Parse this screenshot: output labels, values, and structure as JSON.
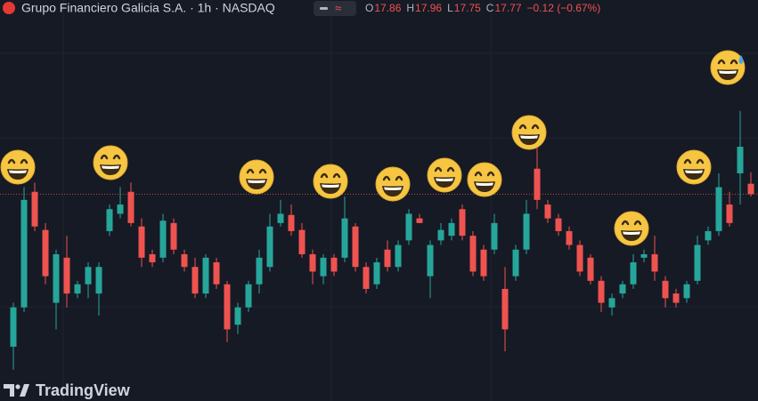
{
  "chart_data": {
    "type": "candlestick",
    "title": "Grupo Financiero Galicia S.A. · 1h · NASDAQ",
    "ohlc_labels": [
      "O",
      "H",
      "L",
      "C"
    ],
    "change": "−0.12 (−0.67%)",
    "brand": "TradingView",
    "up_color": "#26a69a",
    "down_color": "#ef5350",
    "ylim": [
      15.98,
      19.45
    ],
    "open": [
      16.45,
      16.79,
      17.79,
      17.46,
      16.83,
      17.22,
      16.91,
      16.99,
      16.91,
      17.45,
      17.6,
      17.79,
      17.49,
      17.25,
      17.22,
      17.52,
      17.25,
      17.14,
      16.91,
      17.18,
      16.99,
      16.64,
      16.79,
      16.99,
      17.14,
      17.52,
      17.59,
      17.46,
      17.25,
      17.06,
      17.22,
      17.22,
      17.49,
      17.14,
      16.99,
      17.29,
      17.14,
      17.37,
      17.56,
      17.06,
      17.37,
      17.41,
      17.64,
      17.41,
      17.29,
      17.29,
      16.95,
      17.06,
      17.29,
      17.99,
      17.68,
      17.56,
      17.45,
      17.33,
      17.22,
      17.02,
      16.79,
      16.91,
      16.99,
      17.22,
      17.25,
      17.02,
      16.91,
      16.87,
      17.02,
      17.37,
      17.45,
      17.68,
      17.95,
      17.86
    ],
    "high": [
      16.83,
      17.83,
      17.87,
      17.52,
      17.29,
      17.41,
      17.02,
      17.18,
      17.18,
      17.68,
      17.83,
      17.87,
      17.56,
      17.29,
      17.6,
      17.56,
      17.29,
      17.22,
      17.25,
      17.22,
      17.02,
      16.83,
      17.02,
      17.29,
      17.6,
      17.72,
      17.68,
      17.52,
      17.29,
      17.25,
      17.25,
      17.75,
      17.52,
      17.18,
      17.22,
      17.37,
      17.37,
      17.64,
      17.6,
      17.37,
      17.52,
      17.56,
      17.68,
      17.45,
      17.33,
      17.6,
      17.14,
      17.33,
      17.72,
      18.18,
      17.72,
      17.6,
      17.49,
      17.37,
      17.25,
      17.06,
      16.91,
      17.02,
      17.25,
      17.29,
      17.41,
      17.06,
      16.95,
      17.02,
      17.41,
      17.49,
      17.95,
      17.79,
      18.49,
      17.96
    ],
    "low": [
      16.25,
      16.75,
      17.45,
      16.99,
      16.6,
      16.79,
      16.87,
      16.87,
      16.72,
      17.41,
      17.56,
      17.49,
      17.14,
      17.14,
      17.18,
      17.25,
      17.1,
      16.87,
      16.87,
      16.95,
      16.49,
      16.56,
      16.75,
      16.91,
      17.1,
      17.49,
      17.41,
      17.22,
      16.99,
      16.99,
      17.06,
      17.18,
      17.1,
      16.91,
      16.95,
      17.1,
      17.1,
      17.33,
      17.52,
      16.87,
      17.33,
      17.37,
      17.37,
      17.06,
      17.02,
      17.25,
      16.41,
      17.02,
      17.25,
      17.64,
      17.52,
      17.41,
      17.29,
      17.06,
      16.99,
      16.75,
      16.72,
      16.87,
      16.95,
      17.18,
      17.02,
      16.79,
      16.79,
      16.83,
      16.99,
      17.33,
      17.41,
      17.49,
      17.68,
      17.75
    ],
    "close": [
      16.79,
      17.72,
      17.49,
      17.06,
      17.25,
      16.91,
      16.99,
      17.14,
      17.14,
      17.64,
      17.68,
      17.52,
      17.22,
      17.18,
      17.54,
      17.29,
      17.14,
      16.91,
      17.22,
      16.99,
      16.6,
      16.79,
      16.99,
      17.22,
      17.49,
      17.6,
      17.45,
      17.25,
      17.1,
      17.22,
      17.1,
      17.56,
      17.14,
      16.95,
      17.18,
      17.14,
      17.33,
      17.6,
      17.52,
      17.33,
      17.46,
      17.52,
      17.41,
      17.1,
      17.06,
      17.52,
      16.6,
      17.29,
      17.6,
      17.72,
      17.56,
      17.45,
      17.33,
      17.1,
      17.02,
      16.83,
      16.87,
      16.99,
      17.18,
      17.25,
      17.1,
      16.87,
      16.83,
      16.99,
      17.33,
      17.45,
      17.83,
      17.52,
      18.18,
      17.77
    ]
  }
}
